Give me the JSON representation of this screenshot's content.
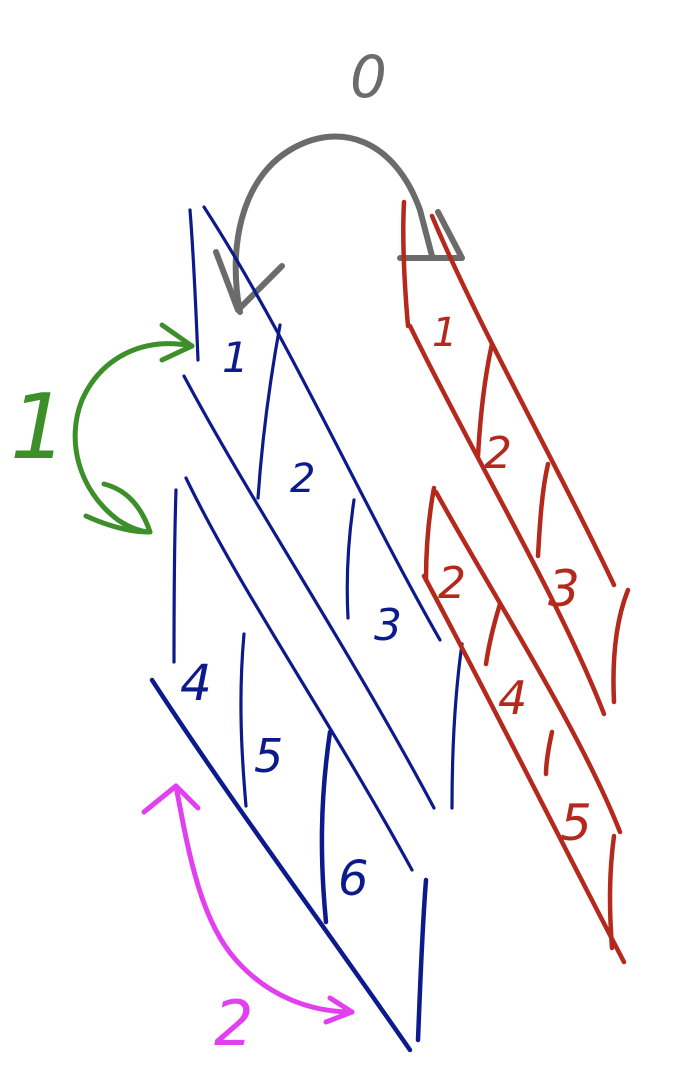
{
  "labels": {
    "top_zero": "0",
    "green_one": "1",
    "pink_two": "2",
    "blue_strips": [
      "1",
      "2",
      "3",
      "4",
      "5",
      "6"
    ],
    "red_strips_upper": [
      "1",
      "2",
      "3"
    ],
    "red_strips_lower": [
      "2",
      "4",
      "5"
    ]
  },
  "colors": {
    "gray": "#6b6b6b",
    "blue": "#0c1a8c",
    "red": "#b5281c",
    "green": "#3d8f2a",
    "pink": "#e23ff0"
  }
}
